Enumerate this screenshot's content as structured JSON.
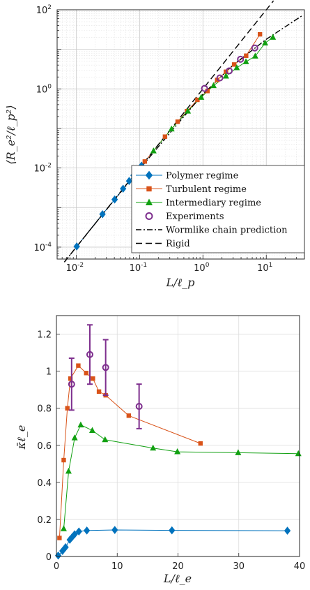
{
  "chart_data": [
    {
      "type": "line",
      "xscale": "log",
      "yscale": "log",
      "xlabel": "L/ℓ_p",
      "ylabel": "⟨R_e²/ℓ_p²⟩",
      "xlim": [
        0.005,
        40
      ],
      "ylim": [
        5e-05,
        100
      ],
      "grid": true,
      "legend": "lower-right",
      "xticks": [
        {
          "value": 0.01,
          "base": "10",
          "exp": "-2"
        },
        {
          "value": 0.1,
          "base": "10",
          "exp": "-1"
        },
        {
          "value": 1,
          "base": "10",
          "exp": "0"
        },
        {
          "value": 10,
          "base": "10",
          "exp": "1"
        }
      ],
      "yticks": [
        {
          "value": 0.0001,
          "base": "10",
          "exp": "-4"
        },
        {
          "value": 0.01,
          "base": "10",
          "exp": "-2"
        },
        {
          "value": 1,
          "base": "10",
          "exp": "0"
        },
        {
          "value": 100,
          "base": "10",
          "exp": "2"
        }
      ],
      "series": [
        {
          "name": "Polymer regime",
          "color": "#0072BD",
          "marker": "diamond",
          "line": "solid",
          "x": [
            0.0102,
            0.026,
            0.0405,
            0.055,
            0.0685,
            0.0805,
            0.0965,
            0.1075
          ],
          "y": [
            0.000104,
            0.00068,
            0.0016,
            0.003,
            0.0047,
            0.0065,
            0.0093,
            0.0115
          ]
        },
        {
          "name": "Turbulent regime",
          "color": "#D95319",
          "marker": "square",
          "line": "solid",
          "x": [
            0.121,
            0.252,
            0.399,
            0.561,
            0.819,
            1.18,
            1.68,
            2.31,
            3.11,
            4.81,
            7.95
          ],
          "y": [
            0.0146,
            0.0621,
            0.148,
            0.274,
            0.528,
            0.884,
            1.68,
            2.71,
            4.14,
            6.9,
            24.0
          ]
        },
        {
          "name": "Intermediary regime",
          "color": "#11A011",
          "marker": "triangle",
          "line": "solid",
          "x": [
            0.166,
            0.319,
            0.578,
            0.94,
            1.47,
            2.31,
            3.42,
            4.78,
            6.69,
            9.58,
            12.7
          ],
          "y": [
            0.0271,
            0.097,
            0.275,
            0.611,
            1.21,
            2.1,
            3.42,
            4.86,
            6.74,
            14.4,
            20.2
          ]
        },
        {
          "name": "Experiments",
          "color": "#7E2F8E",
          "marker": "circle",
          "line": "none",
          "x": [
            1.06,
            1.85,
            2.6,
            3.92,
            6.58
          ],
          "y": [
            1.03,
            1.89,
            2.85,
            5.62,
            10.8
          ]
        },
        {
          "name": "Wormlike chain prediction",
          "color": "#000000",
          "marker": "none",
          "line": "dashdot",
          "x": [
            0.0065,
            0.01,
            0.03,
            0.1,
            0.3,
            1,
            3,
            10,
            38
          ],
          "y": [
            4.2e-05,
            0.0001,
            0.000886,
            0.00936,
            0.0761,
            0.736,
            4.01,
            17.9,
            73.5
          ]
        },
        {
          "name": "Rigid",
          "color": "#000000",
          "marker": "none",
          "line": "dashed",
          "x": [
            0.0065,
            13.0
          ],
          "y": [
            4.2e-05,
            169
          ]
        }
      ]
    },
    {
      "type": "line",
      "xlabel": "L/ℓ_e",
      "ylabel": "κ̄ℓ_e",
      "xlim": [
        0,
        40
      ],
      "ylim": [
        0,
        1.3
      ],
      "grid": true,
      "xticks": [
        "0",
        "10",
        "20",
        "30",
        "40"
      ],
      "yticks": [
        "0",
        "0.2",
        "0.4",
        "0.6",
        "0.8",
        "1",
        "1.2"
      ],
      "series": [
        {
          "name": "Polymer regime",
          "color": "#0072BD",
          "marker": "diamond",
          "x": [
            0.3,
            1.0,
            1.5,
            2.2,
            2.6,
            3.0,
            3.7,
            5.0,
            9.6,
            19.0,
            38.0
          ],
          "y": [
            0.005,
            0.03,
            0.05,
            0.09,
            0.105,
            0.12,
            0.135,
            0.14,
            0.143,
            0.141,
            0.139
          ]
        },
        {
          "name": "Turbulent regime",
          "color": "#D95319",
          "marker": "square",
          "x": [
            0.5,
            1.2,
            1.8,
            2.3,
            3.6,
            4.9,
            6.0,
            7.0,
            8.1,
            11.9,
            23.7
          ],
          "y": [
            0.1,
            0.52,
            0.8,
            0.96,
            1.03,
            0.99,
            0.96,
            0.89,
            0.87,
            0.76,
            0.61
          ]
        },
        {
          "name": "Intermediary regime",
          "color": "#11A011",
          "marker": "triangle",
          "x": [
            1.2,
            2.0,
            3.0,
            4.0,
            5.9,
            8.0,
            15.9,
            19.9,
            29.9,
            39.8
          ],
          "y": [
            0.15,
            0.46,
            0.64,
            0.71,
            0.68,
            0.63,
            0.585,
            0.565,
            0.56,
            0.555
          ]
        },
        {
          "name": "Experiments",
          "color": "#7E2F8E",
          "marker": "circle",
          "x": [
            2.5,
            5.5,
            8.1,
            13.6
          ],
          "y": [
            0.93,
            1.09,
            1.02,
            0.81
          ],
          "err": [
            0.14,
            0.16,
            0.15,
            0.12
          ]
        }
      ]
    }
  ]
}
